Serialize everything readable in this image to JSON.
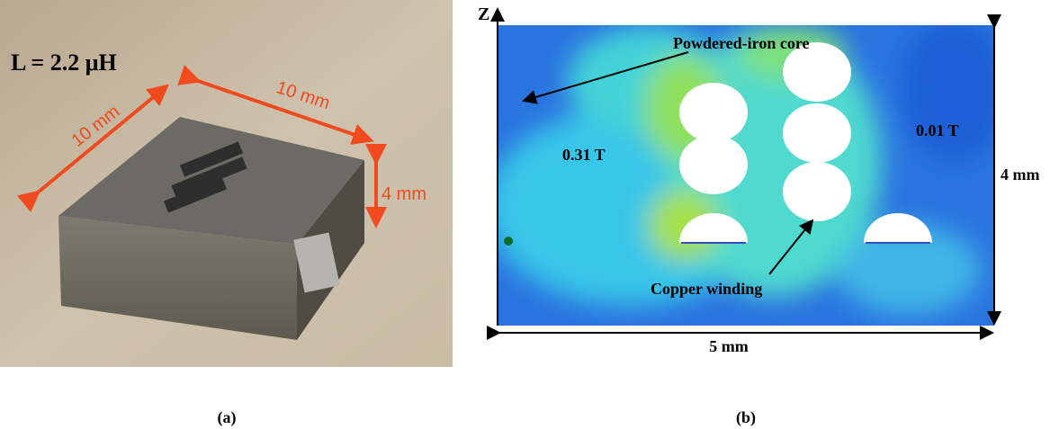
{
  "panel_a": {
    "inductance_label": "L = 2.2 μH",
    "dimension_labels": [
      "10 mm",
      "10 mm",
      "4 mm"
    ],
    "caption": "(a)"
  },
  "panel_b": {
    "axis_label": "Z",
    "annotations": [
      "Powdered-iron core",
      "0.01 T",
      "0.31 T",
      "Copper winding"
    ],
    "dimension_labels": [
      "4 mm",
      "5 mm"
    ],
    "caption": "(b)"
  }
}
